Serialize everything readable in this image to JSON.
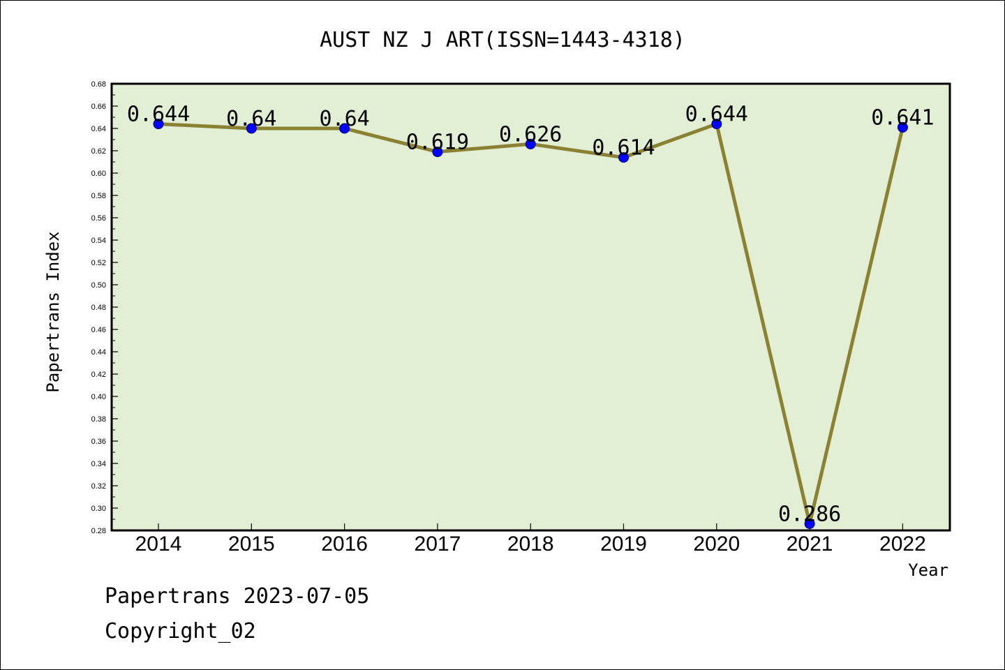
{
  "chart_data": {
    "type": "line",
    "title": "AUST NZ J ART(ISSN=1443-4318)",
    "xlabel": "Year",
    "ylabel": "Papertrans Index",
    "categories": [
      "2014",
      "2015",
      "2016",
      "2017",
      "2018",
      "2019",
      "2020",
      "2021",
      "2022"
    ],
    "values": [
      0.644,
      0.64,
      0.64,
      0.619,
      0.626,
      0.614,
      0.644,
      0.286,
      0.641
    ],
    "data_labels": [
      "0.644",
      "0.64",
      "0.64",
      "0.619",
      "0.626",
      "0.614",
      "0.644",
      "0.286",
      "0.641"
    ],
    "ylim": [
      0.28,
      0.68
    ],
    "yticks": [
      "0.28",
      "0.30",
      "0.32",
      "0.34",
      "0.36",
      "0.38",
      "0.40",
      "0.42",
      "0.44",
      "0.46",
      "0.48",
      "0.50",
      "0.52",
      "0.54",
      "0.56",
      "0.58",
      "0.60",
      "0.62",
      "0.64",
      "0.66",
      "0.68"
    ],
    "grid": false,
    "colors": {
      "plot_background": "#e2efd4",
      "line": "#8b8133",
      "marker": "#0000ff"
    }
  },
  "footer": {
    "date_text": "Papertrans 2023-07-05",
    "copyright_text": "Copyright_02"
  }
}
